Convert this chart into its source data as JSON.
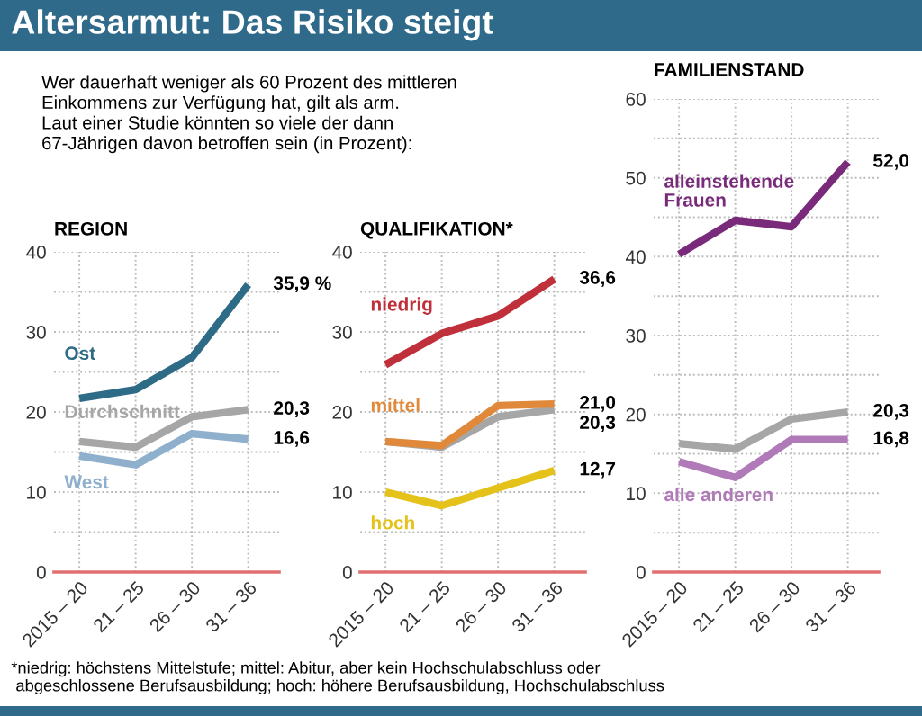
{
  "chart_data": [
    {
      "type": "line",
      "title": "REGION",
      "categories": [
        "2015 – 20",
        "21 – 25",
        "26 – 30",
        "31 – 36"
      ],
      "series": [
        {
          "name": "Ost",
          "color": "#2e6b86",
          "values": [
            21.7,
            22.8,
            26.8,
            35.9
          ],
          "value_labels": [
            null,
            null,
            null,
            "35,9 %"
          ]
        },
        {
          "name": "Durchschnitt",
          "color": "#a6a6a6",
          "values": [
            16.3,
            15.6,
            19.4,
            20.3
          ],
          "value_labels": [
            null,
            null,
            null,
            "20,3"
          ]
        },
        {
          "name": "West",
          "color": "#8fb0cc",
          "values": [
            14.5,
            13.4,
            17.3,
            16.6
          ],
          "value_labels": [
            null,
            null,
            null,
            "16,6"
          ]
        }
      ],
      "ylim": [
        0,
        40
      ],
      "yticks": [
        0,
        {
          "value": 5,
          "label": null
        },
        10,
        {
          "value": 15,
          "label": null
        },
        20,
        {
          "value": 25,
          "label": null
        },
        30,
        {
          "value": 35,
          "label": null
        },
        40
      ],
      "grid": true,
      "line_style": "solid",
      "marker": "none",
      "annotations": [
        "Altersarmut: Das Risiko steigt",
        "Wer dauerhaft weniger als 60 Prozent des mittleren\nEinkommens zur Verfügung hat, gilt als arm.\nLaut einer Studie könnten so viele der dann\n67-Jährigen davon betroffen sein (in Prozent):",
        "*niedrig: höchstens Mittelstufe; mittel: Abitur, aber kein Hochschulabschluss oder\n abgeschlossene Berufsausbildung; hoch: höhere Berufsausbildung, Hochschulabschluss"
      ]
    },
    {
      "type": "line",
      "title": "QUALIFIKATION*",
      "categories": [
        "2015 – 20",
        "21 – 25",
        "26 – 30",
        "31 – 36"
      ],
      "series": [
        {
          "name": "niedrig",
          "color": "#c0303a",
          "values": [
            25.9,
            29.8,
            32.0,
            36.6
          ],
          "value_labels": [
            null,
            null,
            null,
            "36,6"
          ]
        },
        {
          "name": "mittel",
          "color": "#e0893a",
          "values": [
            16.3,
            15.8,
            20.8,
            21.0
          ],
          "value_labels": [
            null,
            null,
            null,
            "21,0"
          ]
        },
        {
          "color": "#a6a6a6",
          "values": [
            16.3,
            15.6,
            19.4,
            20.3
          ],
          "value_labels": [
            null,
            null,
            null,
            "20,3"
          ]
        },
        {
          "name": "hoch",
          "color": "#e5c21a",
          "values": [
            10.0,
            8.3,
            10.5,
            12.7
          ],
          "value_labels": [
            null,
            null,
            null,
            "12,7"
          ]
        }
      ],
      "ylim": [
        0,
        40
      ],
      "yticks": [
        0,
        {
          "value": 5,
          "label": null
        },
        10,
        {
          "value": 15,
          "label": null
        },
        20,
        {
          "value": 25,
          "label": null
        },
        30,
        {
          "value": 35,
          "label": null
        },
        40
      ],
      "grid": true,
      "line_style": "solid",
      "marker": "none"
    },
    {
      "type": "line",
      "title": "FAMILIENSTAND",
      "categories": [
        "2015 – 20",
        "21 – 25",
        "26 – 30",
        "31 – 36"
      ],
      "series": [
        {
          "name": "alleinstehende\nFrauen",
          "color": "#7a2a7a",
          "values": [
            40.3,
            44.6,
            43.8,
            52.0
          ],
          "value_labels": [
            null,
            null,
            null,
            "52,0"
          ]
        },
        {
          "color": "#a6a6a6",
          "values": [
            16.3,
            15.6,
            19.4,
            20.3
          ],
          "value_labels": [
            null,
            null,
            null,
            "20,3"
          ]
        },
        {
          "name": "alle anderen",
          "color": "#b07ab8",
          "values": [
            14.0,
            12.0,
            16.8,
            16.8
          ],
          "value_labels": [
            null,
            null,
            null,
            "16,8"
          ]
        }
      ],
      "ylim": [
        0,
        60
      ],
      "yticks": [
        0,
        {
          "value": 5,
          "label": null
        },
        10,
        {
          "value": 15,
          "label": null
        },
        20,
        {
          "value": 25,
          "label": null
        },
        30,
        {
          "value": 35,
          "label": null
        },
        40,
        {
          "value": 45,
          "label": null
        },
        50,
        {
          "value": 55,
          "label": null
        },
        60
      ],
      "grid": true,
      "line_style": "solid",
      "marker": "none"
    }
  ]
}
